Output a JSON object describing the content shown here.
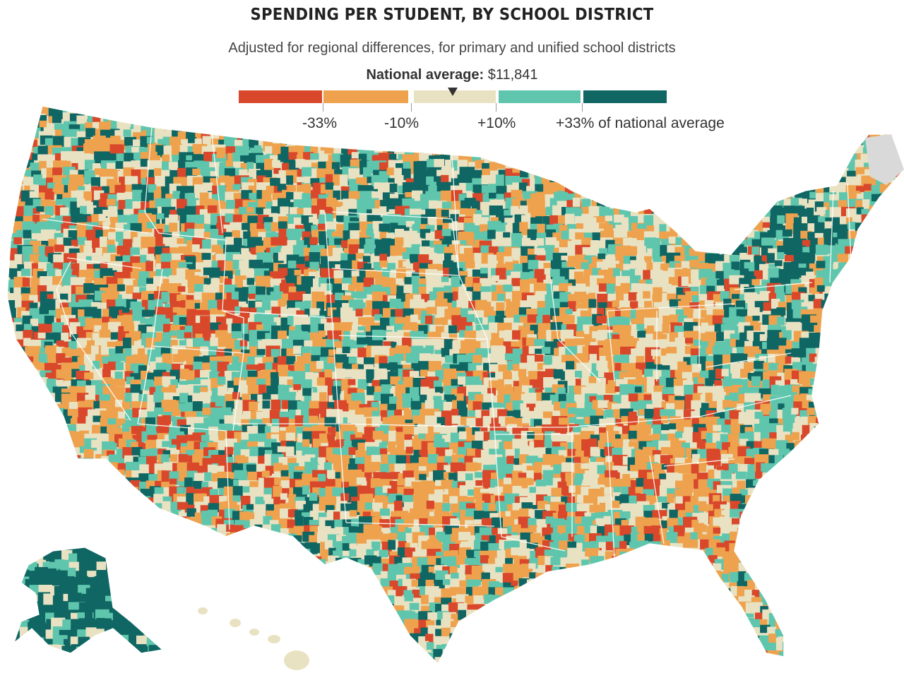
{
  "title": "SPENDING PER STUDENT, BY SCHOOL DISTRICT",
  "subtitle": "Adjusted for regional differences, for primary and unified school districts",
  "national_average": {
    "label": "National average:",
    "value": "$11,841"
  },
  "legend": {
    "bins": [
      {
        "color": "#d9482b"
      },
      {
        "color": "#eea24e"
      },
      {
        "color": "#e9e2c2"
      },
      {
        "color": "#5fc6ad"
      },
      {
        "color": "#0f6663"
      }
    ],
    "tick_labels": [
      "-33%",
      "-10%",
      "+10%",
      "+33% of national average"
    ]
  },
  "map_colors": {
    "very_low": "#d9482b",
    "low": "#eea24e",
    "near_average": "#e9e2c2",
    "high": "#5fc6ad",
    "very_high": "#0f6663",
    "no_data": "#d9d9d9",
    "borders": "#ffffff"
  }
}
